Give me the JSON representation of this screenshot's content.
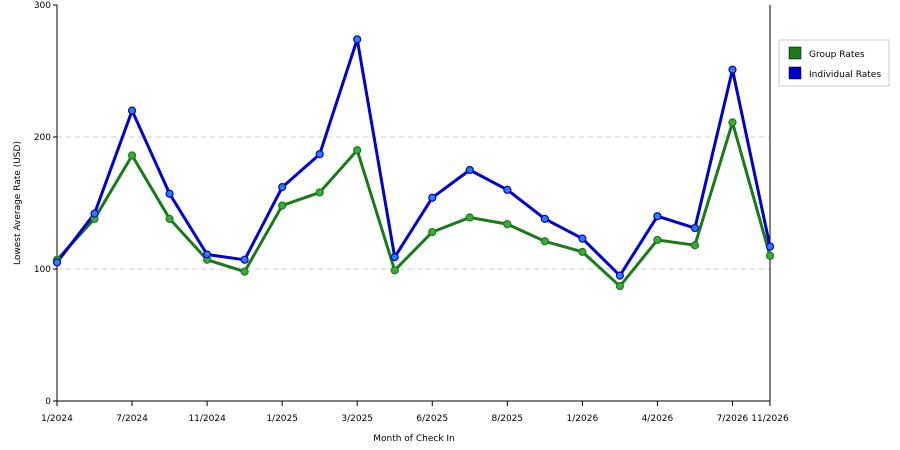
{
  "chart_data": {
    "type": "line",
    "title": "",
    "xlabel": "Month of Check In",
    "ylabel": "Lowest Average Rate (USD)",
    "ylim": [
      0,
      300
    ],
    "yticks": [
      "0",
      "100",
      "200",
      "300"
    ],
    "x_tick_labels": [
      "1/2024",
      "7/2024",
      "11/2024",
      "1/2025",
      "3/2025",
      "6/2025",
      "8/2025",
      "1/2026",
      "4/2026",
      "7/2026",
      "11/2026"
    ],
    "x_tick_point_index": [
      0,
      2,
      4,
      6,
      8,
      10,
      12,
      14,
      16,
      18,
      19
    ],
    "point_count": 20,
    "grid": "horizontal dashed",
    "legend_position": "right",
    "series": [
      {
        "name": "Group Rates",
        "color": "#1a7a1a",
        "marker_color": "#3cab3c",
        "values": [
          107,
          138,
          186,
          138,
          107,
          98,
          148,
          158,
          190,
          99,
          128,
          139,
          134,
          121,
          113,
          87,
          122,
          118,
          211,
          110
        ]
      },
      {
        "name": "Individual Rates",
        "color": "#0000cc",
        "marker_color": "#2f7fe0",
        "values": [
          105,
          142,
          220,
          157,
          111,
          107,
          162,
          187,
          274,
          109,
          154,
          175,
          160,
          138,
          123,
          95,
          140,
          131,
          251,
          117
        ]
      }
    ]
  }
}
